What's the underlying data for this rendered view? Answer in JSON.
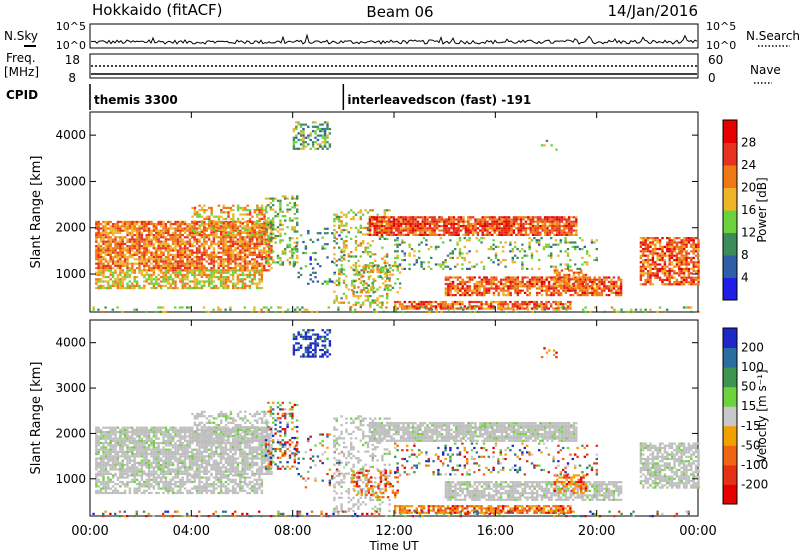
{
  "header": {
    "station": "Hokkaido (fitACF)",
    "beam": "Beam 06",
    "date": "14/Jan/2016"
  },
  "status_panel": {
    "nsky_label": "N.Sky",
    "nsky_ticks": [
      "10^5",
      "10^0"
    ],
    "nsearch_label": "N.Search",
    "nsearch_ticks": [
      "10^5",
      "10^0"
    ],
    "freq_label": "Freq.",
    "freq_unit": "[MHz]",
    "freq_ticks": [
      "18",
      "8"
    ],
    "nave_label": "Nave",
    "nave_ticks": [
      "60",
      "0"
    ],
    "cpid_label": "CPID",
    "cpid_entries": [
      {
        "label": "themis 3300",
        "start_hour": 0.0
      },
      {
        "label": "interleavedscon (fast) -191",
        "start_hour": 10.0
      }
    ]
  },
  "x_axis": {
    "label": "Time UT",
    "ticks": [
      "00:00",
      "04:00",
      "08:00",
      "12:00",
      "16:00",
      "20:00",
      "00:00"
    ],
    "tick_hours": [
      0,
      4,
      8,
      12,
      16,
      20,
      24
    ],
    "range_hours": [
      0,
      24
    ]
  },
  "chart_data": [
    {
      "type": "heatmap",
      "panel": "power",
      "ylabel": "Slant Range [km]",
      "ylim": [
        180,
        4500
      ],
      "yticks": [
        1000,
        2000,
        3000,
        4000
      ],
      "colorbar_label": "Power [dB]",
      "colorbar_ticks": [
        "4",
        "8",
        "12",
        "16",
        "20",
        "24",
        "28"
      ],
      "colorbar_colors": [
        "#1e1ee6",
        "#2e5ea8",
        "#3c8c5a",
        "#6bd23c",
        "#f0b428",
        "#f07814",
        "#e6321e",
        "#e60000"
      ],
      "grid": false
    },
    {
      "type": "heatmap",
      "panel": "velocity",
      "ylabel": "Slant Range [km]",
      "ylim": [
        180,
        4500
      ],
      "yticks": [
        1000,
        2000,
        3000,
        4000
      ],
      "colorbar_label": "Velocity [m s⁻¹]",
      "colorbar_ticks": [
        "200",
        "100",
        "50",
        "15",
        "-15",
        "-50",
        "-100",
        "-200"
      ],
      "colorbar_colors": [
        "#1e28c8",
        "#2a6ea0",
        "#3c9650",
        "#6ed23c",
        "#c8c8c8",
        "#f0a000",
        "#f06414",
        "#e63214",
        "#e60000"
      ],
      "ground_scatter_color": "#bebebe",
      "grid": false
    }
  ],
  "echo_regions": [
    {
      "h": [
        0.2,
        7.2
      ],
      "r": [
        1100,
        2150
      ],
      "pmean": 22,
      "vmode": "gs",
      "d": 0.8
    },
    {
      "h": [
        0.2,
        6.8
      ],
      "r": [
        700,
        1100
      ],
      "pmean": 18,
      "vmode": "gs",
      "d": 0.65
    },
    {
      "h": [
        4.0,
        7.0
      ],
      "r": [
        1800,
        2500
      ],
      "pmean": 19,
      "vmode": "gs",
      "d": 0.45
    },
    {
      "h": [
        6.9,
        8.2
      ],
      "r": [
        1200,
        2700
      ],
      "pmean": 14,
      "vmode": "mix",
      "d": 0.35
    },
    {
      "h": [
        8.0,
        9.5
      ],
      "r": [
        3700,
        4300
      ],
      "pmean": 12,
      "vmode": "toward",
      "d": 0.5
    },
    {
      "h": [
        8.0,
        10.0
      ],
      "r": [
        800,
        2000
      ],
      "pmean": 9,
      "vmode": "mix",
      "d": 0.12
    },
    {
      "h": [
        9.6,
        11.8
      ],
      "r": [
        300,
        2400
      ],
      "pmean": 16,
      "vmode": "gs",
      "d": 0.3
    },
    {
      "h": [
        10.3,
        12.2
      ],
      "r": [
        600,
        1200
      ],
      "pmean": 16,
      "vmode": "away",
      "d": 0.3
    },
    {
      "h": [
        11.0,
        19.2
      ],
      "r": [
        1850,
        2250
      ],
      "pmean": 25,
      "vmode": "gs",
      "d": 0.85
    },
    {
      "h": [
        14.0,
        21.0
      ],
      "r": [
        550,
        950
      ],
      "pmean": 24,
      "vmode": "gs",
      "d": 0.75
    },
    {
      "h": [
        12.0,
        19.0
      ],
      "r": [
        250,
        420
      ],
      "pmean": 24,
      "vmode": "away",
      "d": 0.75
    },
    {
      "h": [
        18.3,
        19.6
      ],
      "r": [
        700,
        1100
      ],
      "pmean": 22,
      "vmode": "away",
      "d": 0.55
    },
    {
      "h": [
        12.0,
        20.0
      ],
      "r": [
        1100,
        1800
      ],
      "pmean": 13,
      "vmode": "mix",
      "d": 0.2
    },
    {
      "h": [
        21.7,
        24.0
      ],
      "r": [
        800,
        1800
      ],
      "pmean": 24,
      "vmode": "gs",
      "d": 0.72
    },
    {
      "h": [
        0.0,
        24.0
      ],
      "r": [
        200,
        300
      ],
      "pmean": 15,
      "vmode": "mix",
      "d": 0.2
    },
    {
      "h": [
        17.8,
        18.4
      ],
      "r": [
        3700,
        3900
      ],
      "pmean": 14,
      "vmode": "away",
      "d": 0.3
    }
  ]
}
